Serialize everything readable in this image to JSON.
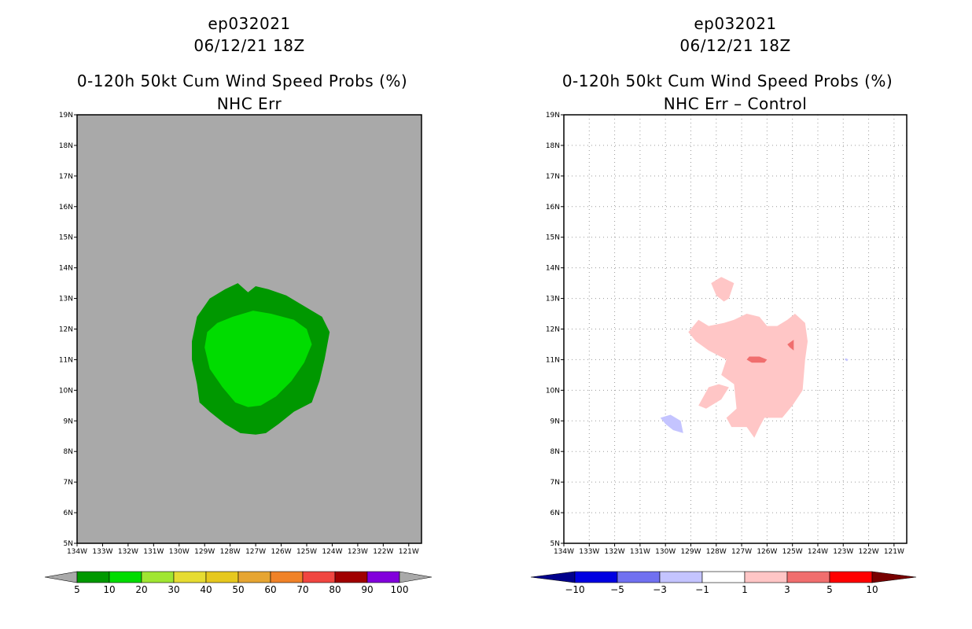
{
  "colors": {
    "land_gray": "#a9a9a9",
    "frame": "#000000",
    "grid": "#9a9a9a"
  },
  "panels": [
    {
      "storm_id": "ep032021",
      "datetime": "06/12/21 18Z",
      "title": "0-120h 50kt Cum Wind Speed Probs (%)",
      "subtitle": "NHC Err"
    },
    {
      "storm_id": "ep032021",
      "datetime": "06/12/21 18Z",
      "title": "0-120h 50kt Cum Wind Speed Probs (%)",
      "subtitle": "NHC Err – Control"
    }
  ],
  "chart_data": [
    {
      "type": "heatmap",
      "title": "0-120h 50kt Cum Wind Speed Probs (%)",
      "subtitle": "NHC Err",
      "xlim": [
        -134,
        -120.5
      ],
      "ylim": [
        5,
        19
      ],
      "x_ticks": [
        {
          "v": -134,
          "label": "134W"
        },
        {
          "v": -133,
          "label": "133W"
        },
        {
          "v": -132,
          "label": "132W"
        },
        {
          "v": -131,
          "label": "131W"
        },
        {
          "v": -130,
          "label": "130W"
        },
        {
          "v": -129,
          "label": "129W"
        },
        {
          "v": -128,
          "label": "128W"
        },
        {
          "v": -127,
          "label": "127W"
        },
        {
          "v": -126,
          "label": "126W"
        },
        {
          "v": -125,
          "label": "125W"
        },
        {
          "v": -124,
          "label": "124W"
        },
        {
          "v": -123,
          "label": "123W"
        },
        {
          "v": -122,
          "label": "122W"
        },
        {
          "v": -121,
          "label": "121W"
        }
      ],
      "y_ticks": [
        {
          "v": 5,
          "label": "5N"
        },
        {
          "v": 6,
          "label": "6N"
        },
        {
          "v": 7,
          "label": "7N"
        },
        {
          "v": 8,
          "label": "8N"
        },
        {
          "v": 9,
          "label": "9N"
        },
        {
          "v": 10,
          "label": "10N"
        },
        {
          "v": 11,
          "label": "11N"
        },
        {
          "v": 12,
          "label": "12N"
        },
        {
          "v": 13,
          "label": "13N"
        },
        {
          "v": 14,
          "label": "14N"
        },
        {
          "v": 15,
          "label": "15N"
        },
        {
          "v": 16,
          "label": "16N"
        },
        {
          "v": 17,
          "label": "17N"
        },
        {
          "v": 18,
          "label": "18N"
        },
        {
          "v": 19,
          "label": "19N"
        }
      ],
      "background": "#a9a9a9",
      "contours": [
        {
          "level": "5-10%",
          "color": "#009800",
          "points": [
            [
              -129.5,
              11.6
            ],
            [
              -129.3,
              12.4
            ],
            [
              -128.8,
              13
            ],
            [
              -128.2,
              13.3
            ],
            [
              -127.7,
              13.5
            ],
            [
              -127.3,
              13.2
            ],
            [
              -127,
              13.4
            ],
            [
              -126.5,
              13.3
            ],
            [
              -125.8,
              13.1
            ],
            [
              -125,
              12.7
            ],
            [
              -124.4,
              12.4
            ],
            [
              -124.1,
              11.9
            ],
            [
              -124.3,
              11
            ],
            [
              -124.5,
              10.3
            ],
            [
              -124.8,
              9.6
            ],
            [
              -125.5,
              9.3
            ],
            [
              -126.1,
              8.9
            ],
            [
              -126.6,
              8.6
            ],
            [
              -127,
              8.55
            ],
            [
              -127.6,
              8.6
            ],
            [
              -128.2,
              8.9
            ],
            [
              -128.8,
              9.3
            ],
            [
              -129.2,
              9.6
            ],
            [
              -129.3,
              10.2
            ],
            [
              -129.5,
              11
            ]
          ]
        },
        {
          "level": "10-20%",
          "color": "#00dc00",
          "points": [
            [
              -129,
              11.4
            ],
            [
              -128.9,
              11.9
            ],
            [
              -128.5,
              12.2
            ],
            [
              -127.9,
              12.4
            ],
            [
              -127.1,
              12.6
            ],
            [
              -126.4,
              12.5
            ],
            [
              -125.5,
              12.3
            ],
            [
              -125,
              12
            ],
            [
              -124.8,
              11.5
            ],
            [
              -125.1,
              10.9
            ],
            [
              -125.6,
              10.3
            ],
            [
              -126.2,
              9.8
            ],
            [
              -126.8,
              9.5
            ],
            [
              -127.3,
              9.45
            ],
            [
              -127.8,
              9.6
            ],
            [
              -128.3,
              10.1
            ],
            [
              -128.8,
              10.7
            ]
          ]
        }
      ],
      "colorbar": {
        "labels": [
          "5",
          "10",
          "20",
          "30",
          "40",
          "50",
          "60",
          "70",
          "80",
          "90",
          "100"
        ],
        "colors": [
          "#009800",
          "#00dc00",
          "#a0e632",
          "#e6dc32",
          "#e6c81e",
          "#e6a532",
          "#f08228",
          "#f04641",
          "#a00000",
          "#8200dc"
        ],
        "end_colors": [
          "#a9a9a9",
          "#a9a9a9"
        ]
      }
    },
    {
      "type": "heatmap",
      "title": "0-120h 50kt Cum Wind Speed Probs (%)",
      "subtitle": "NHC Err – Control",
      "xlim": [
        -134,
        -120.5
      ],
      "ylim": [
        5,
        19
      ],
      "grid": true,
      "x_ticks": [
        {
          "v": -134,
          "label": "134W"
        },
        {
          "v": -133,
          "label": "133W"
        },
        {
          "v": -132,
          "label": "132W"
        },
        {
          "v": -131,
          "label": "131W"
        },
        {
          "v": -130,
          "label": "130W"
        },
        {
          "v": -129,
          "label": "129W"
        },
        {
          "v": -128,
          "label": "128W"
        },
        {
          "v": -127,
          "label": "127W"
        },
        {
          "v": -126,
          "label": "126W"
        },
        {
          "v": -125,
          "label": "125W"
        },
        {
          "v": -124,
          "label": "124W"
        },
        {
          "v": -123,
          "label": "123W"
        },
        {
          "v": -122,
          "label": "122W"
        },
        {
          "v": -121,
          "label": "121W"
        }
      ],
      "y_ticks": [
        {
          "v": 5,
          "label": "5N"
        },
        {
          "v": 6,
          "label": "6N"
        },
        {
          "v": 7,
          "label": "7N"
        },
        {
          "v": 8,
          "label": "8N"
        },
        {
          "v": 9,
          "label": "9N"
        },
        {
          "v": 10,
          "label": "10N"
        },
        {
          "v": 11,
          "label": "11N"
        },
        {
          "v": 12,
          "label": "12N"
        },
        {
          "v": 13,
          "label": "13N"
        },
        {
          "v": 14,
          "label": "14N"
        },
        {
          "v": 15,
          "label": "15N"
        },
        {
          "v": 16,
          "label": "16N"
        },
        {
          "v": 17,
          "label": "17N"
        },
        {
          "v": 18,
          "label": "18N"
        },
        {
          "v": 19,
          "label": "19N"
        }
      ],
      "background": "#ffffff",
      "contours": [
        {
          "level": "1-3",
          "color": "#ffc6c6",
          "points": [
            [
              -129.1,
              11.9
            ],
            [
              -128.7,
              12.3
            ],
            [
              -128.3,
              12.1
            ],
            [
              -127.7,
              12.2
            ],
            [
              -127.3,
              12.3
            ],
            [
              -126.8,
              12.5
            ],
            [
              -126.3,
              12.4
            ],
            [
              -126,
              12.1
            ],
            [
              -125.6,
              12.1
            ],
            [
              -125.2,
              12.3
            ],
            [
              -124.9,
              12.5
            ],
            [
              -124.5,
              12.2
            ],
            [
              -124.4,
              11.6
            ],
            [
              -124.5,
              11
            ],
            [
              -124.6,
              10
            ],
            [
              -125,
              9.5
            ],
            [
              -125.4,
              9.1
            ],
            [
              -126.1,
              9.1
            ],
            [
              -126.3,
              8.8
            ],
            [
              -126.5,
              8.45
            ],
            [
              -126.8,
              8.8
            ],
            [
              -127.4,
              8.8
            ],
            [
              -127.6,
              9.1
            ],
            [
              -127.2,
              9.4
            ],
            [
              -127.3,
              10.2
            ],
            [
              -127.8,
              10.5
            ],
            [
              -127.6,
              11
            ],
            [
              -128.3,
              11.3
            ],
            [
              -128.8,
              11.6
            ]
          ]
        },
        {
          "level": "1-3",
          "color": "#ffc6c6",
          "points": [
            [
              -128.2,
              13.5
            ],
            [
              -127.8,
              13.7
            ],
            [
              -127.3,
              13.5
            ],
            [
              -127.5,
              13
            ],
            [
              -127.7,
              12.9
            ],
            [
              -128,
              13.1
            ],
            [
              -128.1,
              13.3
            ]
          ]
        },
        {
          "level": "1-3",
          "color": "#ffc6c6",
          "points": [
            [
              -128.7,
              9.5
            ],
            [
              -128.3,
              10.1
            ],
            [
              -127.9,
              10.2
            ],
            [
              -127.5,
              10.1
            ],
            [
              -127.8,
              9.7
            ],
            [
              -128.4,
              9.4
            ]
          ]
        },
        {
          "level": "3-5",
          "color": "#f06e6e",
          "points": [
            [
              -126.7,
              11.1
            ],
            [
              -126.3,
              11.1
            ],
            [
              -126,
              11
            ],
            [
              -126.1,
              10.9
            ],
            [
              -126.6,
              10.9
            ],
            [
              -126.8,
              11
            ]
          ]
        },
        {
          "level": "3-5",
          "color": "#f06e6e",
          "points": [
            [
              -125.2,
              11.5
            ],
            [
              -124.95,
              11.65
            ],
            [
              -124.95,
              11.3
            ],
            [
              -125.1,
              11.4
            ]
          ]
        },
        {
          "level": "-3 to -1",
          "color": "#c4c4ff",
          "points": [
            [
              -130.2,
              9.1
            ],
            [
              -129.8,
              9.2
            ],
            [
              -129.4,
              9
            ],
            [
              -129.3,
              8.6
            ],
            [
              -129.7,
              8.7
            ],
            [
              -130,
              8.9
            ]
          ]
        },
        {
          "level": "-3 to -1",
          "color": "#c4c4ff",
          "points": [
            [
              -122.9,
              11.05
            ],
            [
              -122.8,
              11
            ],
            [
              -122.85,
              10.95
            ],
            [
              -122.95,
              11
            ]
          ]
        }
      ],
      "colorbar": {
        "labels": [
          "−10",
          "−5",
          "−3",
          "−1",
          "1",
          "3",
          "5",
          "10"
        ],
        "colors": [
          "#0000e1",
          "#7070f0",
          "#c4c4ff",
          "#ffffff",
          "#ffc6c6",
          "#f06e6e",
          "#ff0000"
        ],
        "end_colors": [
          "#00008c",
          "#780000"
        ]
      }
    }
  ]
}
